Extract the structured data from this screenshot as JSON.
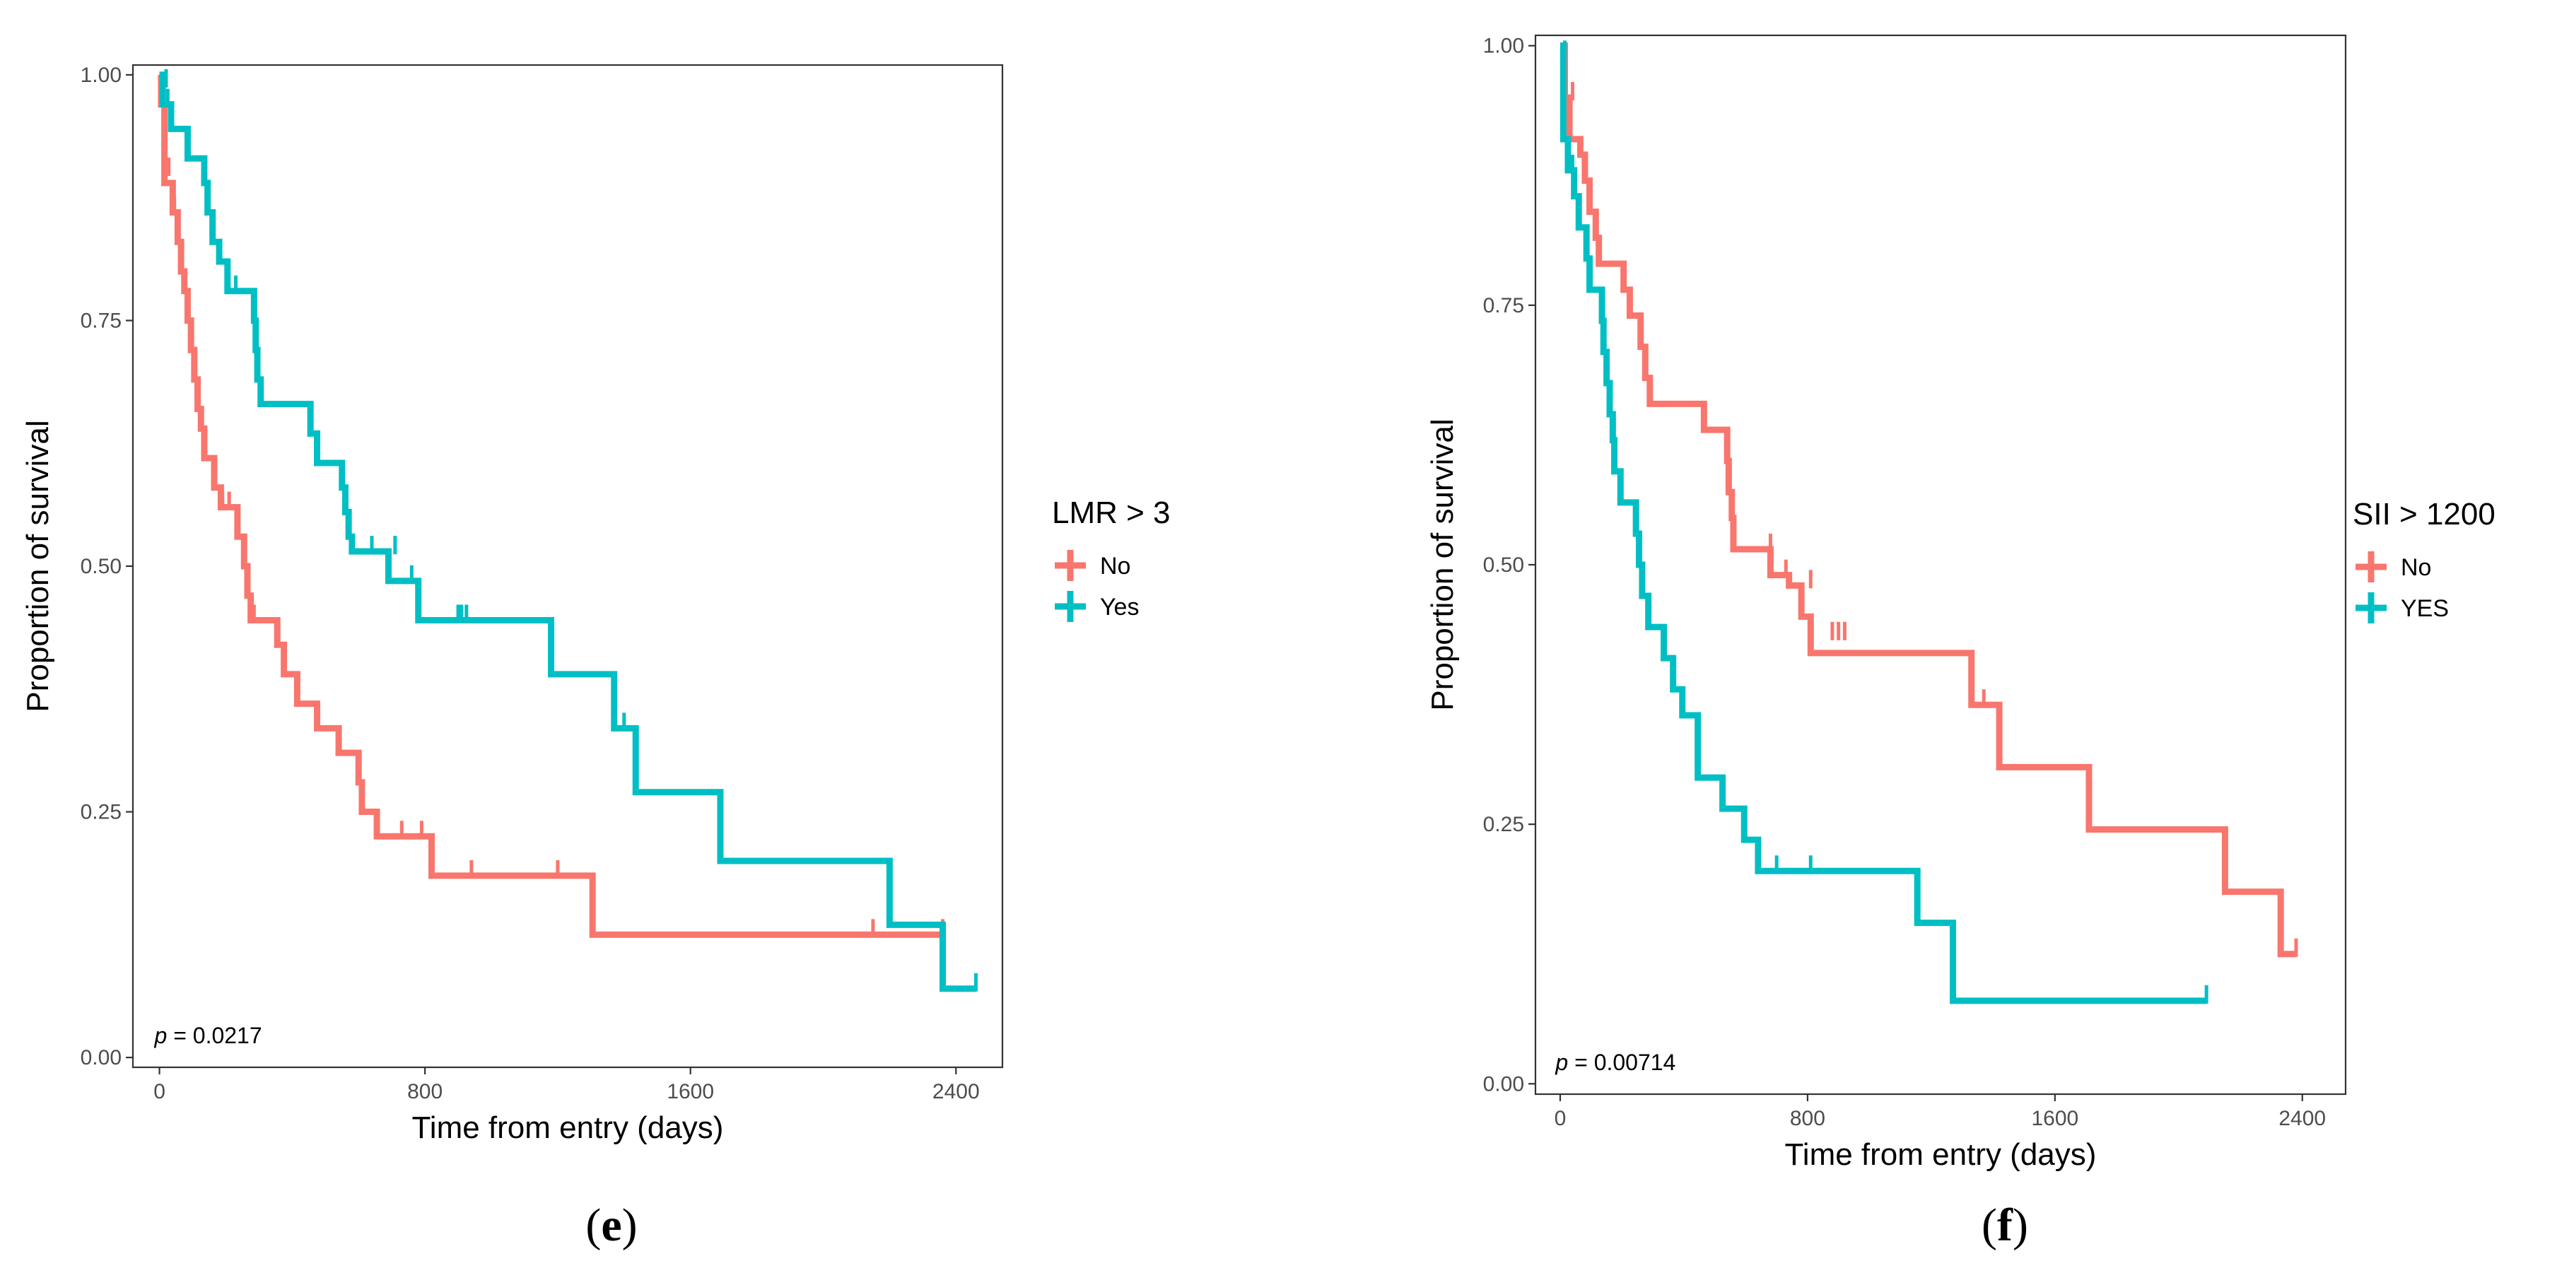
{
  "chart_data": [
    {
      "type": "line",
      "subtype": "kaplan-meier",
      "panel_label": "e",
      "xlabel": "Time from entry (days)",
      "ylabel": "Proportion of survival",
      "xlim": [
        -80,
        2540
      ],
      "ylim": [
        -0.01,
        1.01
      ],
      "x_ticks": [
        0,
        800,
        1600,
        2400
      ],
      "y_ticks": [
        "0.00",
        "0.25",
        "0.50",
        "0.75",
        "1.00"
      ],
      "legend_title": "LMR > 3",
      "legend_position": "right",
      "p_text": "= 0.0217",
      "p_italic": "p",
      "grid": false,
      "series": [
        {
          "name": "No",
          "color": "#F8766D",
          "steps": [
            [
              0,
              1.0
            ],
            [
              5,
              0.97
            ],
            [
              15,
              0.89
            ],
            [
              40,
              0.86
            ],
            [
              55,
              0.83
            ],
            [
              65,
              0.8
            ],
            [
              75,
              0.78
            ],
            [
              85,
              0.75
            ],
            [
              95,
              0.72
            ],
            [
              105,
              0.69
            ],
            [
              115,
              0.66
            ],
            [
              125,
              0.64
            ],
            [
              135,
              0.61
            ],
            [
              165,
              0.58
            ],
            [
              185,
              0.56
            ],
            [
              235,
              0.53
            ],
            [
              255,
              0.5
            ],
            [
              265,
              0.47
            ],
            [
              275,
              0.445
            ],
            [
              355,
              0.42
            ],
            [
              375,
              0.39
            ],
            [
              415,
              0.36
            ],
            [
              475,
              0.335
            ],
            [
              540,
              0.31
            ],
            [
              600,
              0.28
            ],
            [
              610,
              0.25
            ],
            [
              655,
              0.225
            ],
            [
              820,
              0.185
            ],
            [
              1305,
              0.125
            ],
            [
              2360,
              0.125
            ]
          ],
          "censors": [
            [
              8,
              0.985
            ],
            [
              28,
              0.9
            ],
            [
              45,
              0.86
            ],
            [
              190,
              0.56
            ],
            [
              210,
              0.56
            ],
            [
              285,
              0.445
            ],
            [
              610,
              0.25
            ],
            [
              730,
              0.225
            ],
            [
              790,
              0.225
            ],
            [
              940,
              0.185
            ],
            [
              1200,
              0.185
            ],
            [
              2150,
              0.125
            ],
            [
              2360,
              0.125
            ]
          ]
        },
        {
          "name": "Yes",
          "color": "#00BFC4",
          "steps": [
            [
              0,
              1.0
            ],
            [
              10,
              0.97
            ],
            [
              35,
              0.945
            ],
            [
              85,
              0.915
            ],
            [
              135,
              0.89
            ],
            [
              145,
              0.86
            ],
            [
              160,
              0.83
            ],
            [
              180,
              0.81
            ],
            [
              205,
              0.78
            ],
            [
              285,
              0.75
            ],
            [
              290,
              0.72
            ],
            [
              295,
              0.69
            ],
            [
              305,
              0.665
            ],
            [
              455,
              0.635
            ],
            [
              475,
              0.605
            ],
            [
              550,
              0.58
            ],
            [
              560,
              0.555
            ],
            [
              570,
              0.53
            ],
            [
              580,
              0.515
            ],
            [
              690,
              0.485
            ],
            [
              780,
              0.445
            ],
            [
              1180,
              0.39
            ],
            [
              1370,
              0.335
            ],
            [
              1435,
              0.27
            ],
            [
              1690,
              0.2
            ],
            [
              2200,
              0.135
            ],
            [
              2360,
              0.07
            ],
            [
              2460,
              0.07
            ]
          ],
          "censors": [
            [
              20,
              0.99
            ],
            [
              25,
              0.97
            ],
            [
              230,
              0.78
            ],
            [
              640,
              0.515
            ],
            [
              710,
              0.515
            ],
            [
              760,
              0.485
            ],
            [
              900,
              0.445
            ],
            [
              910,
              0.445
            ],
            [
              925,
              0.445
            ],
            [
              1400,
              0.335
            ],
            [
              2460,
              0.07
            ]
          ]
        }
      ]
    },
    {
      "type": "line",
      "subtype": "kaplan-meier",
      "panel_label": "f",
      "xlabel": "Time from entry (days)",
      "ylabel": "Proportion of survival",
      "xlim": [
        -80,
        2540
      ],
      "ylim": [
        -0.01,
        1.01
      ],
      "x_ticks": [
        0,
        800,
        1600,
        2400
      ],
      "y_ticks": [
        "0.00",
        "0.25",
        "0.50",
        "0.75",
        "1.00"
      ],
      "legend_title": "SII > 1200",
      "legend_position": "right",
      "p_text": "= 0.00714",
      "p_italic": "p",
      "grid": false,
      "series": [
        {
          "name": "No",
          "color": "#F8766D",
          "steps": [
            [
              0,
              1.0
            ],
            [
              15,
              0.95
            ],
            [
              30,
              0.91
            ],
            [
              65,
              0.895
            ],
            [
              80,
              0.87
            ],
            [
              95,
              0.84
            ],
            [
              115,
              0.815
            ],
            [
              125,
              0.79
            ],
            [
              205,
              0.765
            ],
            [
              225,
              0.74
            ],
            [
              260,
              0.71
            ],
            [
              275,
              0.68
            ],
            [
              290,
              0.655
            ],
            [
              465,
              0.63
            ],
            [
              540,
              0.6
            ],
            [
              545,
              0.57
            ],
            [
              555,
              0.545
            ],
            [
              560,
              0.515
            ],
            [
              680,
              0.49
            ],
            [
              740,
              0.48
            ],
            [
              780,
              0.45
            ],
            [
              810,
              0.415
            ],
            [
              1330,
              0.365
            ],
            [
              1420,
              0.305
            ],
            [
              1710,
              0.245
            ],
            [
              2150,
              0.185
            ],
            [
              2330,
              0.125
            ],
            [
              2380,
              0.125
            ]
          ],
          "censors": [
            [
              40,
              0.95
            ],
            [
              680,
              0.515
            ],
            [
              730,
              0.49
            ],
            [
              810,
              0.48
            ],
            [
              880,
              0.43
            ],
            [
              900,
              0.43
            ],
            [
              920,
              0.43
            ],
            [
              1370,
              0.365
            ],
            [
              2380,
              0.125
            ]
          ]
        },
        {
          "name": "YES",
          "color": "#00BFC4",
          "steps": [
            [
              0,
              1.0
            ],
            [
              10,
              0.91
            ],
            [
              25,
              0.88
            ],
            [
              45,
              0.855
            ],
            [
              60,
              0.825
            ],
            [
              85,
              0.795
            ],
            [
              95,
              0.765
            ],
            [
              135,
              0.735
            ],
            [
              140,
              0.705
            ],
            [
              150,
              0.675
            ],
            [
              160,
              0.645
            ],
            [
              170,
              0.62
            ],
            [
              175,
              0.59
            ],
            [
              195,
              0.56
            ],
            [
              245,
              0.53
            ],
            [
              255,
              0.5
            ],
            [
              265,
              0.47
            ],
            [
              285,
              0.44
            ],
            [
              335,
              0.41
            ],
            [
              365,
              0.38
            ],
            [
              395,
              0.355
            ],
            [
              445,
              0.295
            ],
            [
              525,
              0.265
            ],
            [
              595,
              0.235
            ],
            [
              640,
              0.205
            ],
            [
              1155,
              0.155
            ],
            [
              1270,
              0.08
            ],
            [
              2090,
              0.08
            ]
          ],
          "censors": [
            [
              15,
              0.99
            ],
            [
              40,
              0.88
            ],
            [
              640,
              0.205
            ],
            [
              700,
              0.205
            ],
            [
              810,
              0.205
            ],
            [
              2090,
              0.08
            ]
          ]
        }
      ]
    }
  ]
}
